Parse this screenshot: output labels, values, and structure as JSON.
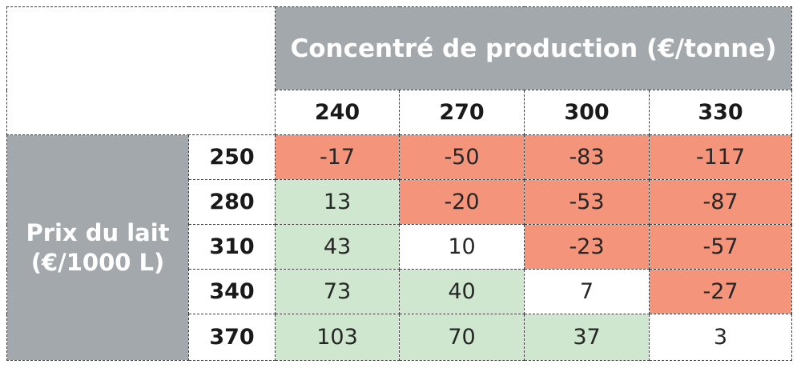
{
  "chart_data": {
    "type": "table",
    "column_header": "Concentré de production (€/tonne)",
    "row_header_lines": [
      "Prix du lait",
      "(€/1000 L)"
    ],
    "columns": [
      "240",
      "270",
      "300",
      "330"
    ],
    "rows": [
      {
        "label": "250",
        "values": [
          "-17",
          "-50",
          "-83",
          "-117"
        ]
      },
      {
        "label": "280",
        "values": [
          "13",
          "-20",
          "-53",
          "-87"
        ]
      },
      {
        "label": "310",
        "values": [
          "43",
          "10",
          "-23",
          "-57"
        ]
      },
      {
        "label": "340",
        "values": [
          "73",
          "40",
          "7",
          "-27"
        ]
      },
      {
        "label": "370",
        "values": [
          "103",
          "70",
          "37",
          "3"
        ]
      }
    ],
    "colors": {
      "header_grey": "#a3a8ac",
      "negative": "#f4957b",
      "positive": "#cfe6cf",
      "neutral": "#ffffff"
    }
  }
}
